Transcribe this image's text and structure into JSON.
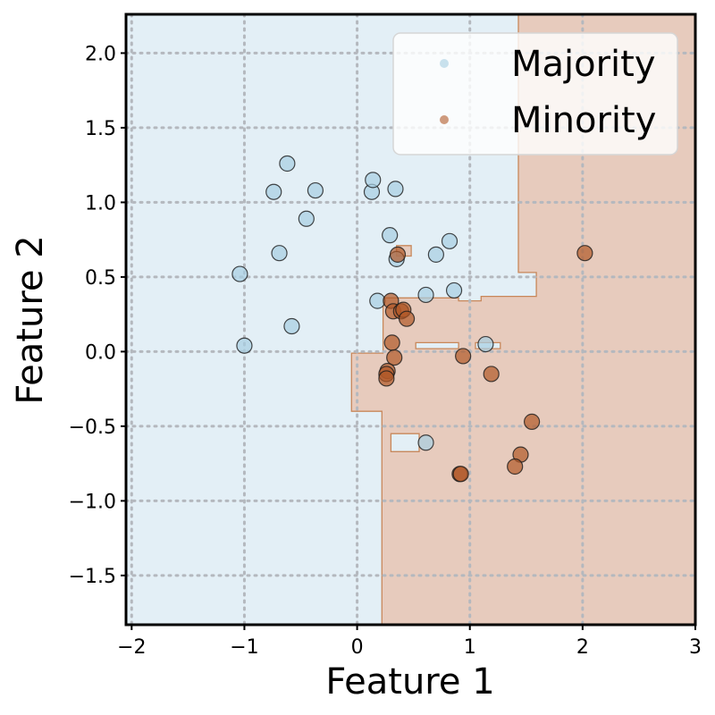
{
  "chart_data": {
    "type": "scatter",
    "xlabel": "Feature 1",
    "ylabel": "Feature 2",
    "xlim": [
      -2.05,
      3.0
    ],
    "ylim": [
      -1.83,
      2.26
    ],
    "x_ticks": [
      -2,
      -1,
      0,
      1,
      2,
      3
    ],
    "x_tick_labels": [
      "−2",
      "−1",
      "0",
      "1",
      "2",
      "3"
    ],
    "y_ticks": [
      -1.5,
      -1.0,
      -0.5,
      0.0,
      0.5,
      1.0,
      1.5,
      2.0
    ],
    "y_tick_labels": [
      "−1.5",
      "−1.0",
      "−0.5",
      "0.0",
      "0.5",
      "1.0",
      "1.5",
      "2.0"
    ],
    "grid": true,
    "legend_position": "top-right",
    "colors": {
      "majority_point": "#a6cee3",
      "minority_point": "#b15928",
      "majority_region": "#e3eff6",
      "minority_region": "#e7cbbd",
      "boundary": "#c8875a",
      "grid": "#b4b8be"
    },
    "decision_regions": {
      "majority_polygons": [
        [
          [
            -2.05,
            2.26
          ],
          [
            1.43,
            2.26
          ],
          [
            1.43,
            0.53
          ],
          [
            1.59,
            0.53
          ],
          [
            1.59,
            0.37
          ],
          [
            1.1,
            0.37
          ],
          [
            1.1,
            0.34
          ],
          [
            0.9,
            0.34
          ],
          [
            0.9,
            0.36
          ],
          [
            0.23,
            0.36
          ],
          [
            0.23,
            -0.01
          ],
          [
            -0.05,
            -0.01
          ],
          [
            -0.05,
            -0.4
          ],
          [
            0.22,
            -0.4
          ],
          [
            0.22,
            -1.83
          ],
          [
            -2.05,
            -1.83
          ]
        ],
        [
          [
            0.3,
            -0.55
          ],
          [
            0.55,
            -0.55
          ],
          [
            0.55,
            -0.67
          ],
          [
            0.3,
            -0.67
          ]
        ],
        [
          [
            0.52,
            0.06
          ],
          [
            0.9,
            0.06
          ],
          [
            0.9,
            0.02
          ],
          [
            0.52,
            0.02
          ]
        ],
        [
          [
            1.05,
            0.06
          ],
          [
            1.27,
            0.06
          ],
          [
            1.27,
            0.02
          ],
          [
            1.05,
            0.02
          ]
        ]
      ],
      "minority_polygons": [
        [
          [
            0.35,
            0.71
          ],
          [
            0.48,
            0.71
          ],
          [
            0.48,
            0.64
          ],
          [
            0.35,
            0.64
          ]
        ]
      ]
    },
    "series": [
      {
        "name": "Majority",
        "x": [
          -0.62,
          -0.74,
          -0.37,
          -0.45,
          0.13,
          0.14,
          0.34,
          0.29,
          0.82,
          0.35,
          0.7,
          -0.69,
          0.61,
          0.86,
          -1.04,
          0.18,
          -0.58,
          -1.0,
          1.14,
          0.61
        ],
        "y": [
          1.26,
          1.07,
          1.08,
          0.89,
          1.07,
          1.15,
          1.09,
          0.78,
          0.74,
          0.62,
          0.65,
          0.66,
          0.38,
          0.41,
          0.52,
          0.34,
          0.17,
          0.04,
          0.05,
          -0.61
        ]
      },
      {
        "name": "Minority",
        "x": [
          2.02,
          0.36,
          0.3,
          0.32,
          0.39,
          0.41,
          0.44,
          0.31,
          0.33,
          0.94,
          0.27,
          0.26,
          0.26,
          1.19,
          1.55,
          1.45,
          1.4,
          0.91,
          0.92
        ],
        "y": [
          0.66,
          0.65,
          0.34,
          0.27,
          0.27,
          0.28,
          0.22,
          0.06,
          -0.04,
          -0.03,
          -0.13,
          -0.15,
          -0.18,
          -0.15,
          -0.47,
          -0.69,
          -0.77,
          -0.82,
          -0.82
        ]
      }
    ]
  }
}
